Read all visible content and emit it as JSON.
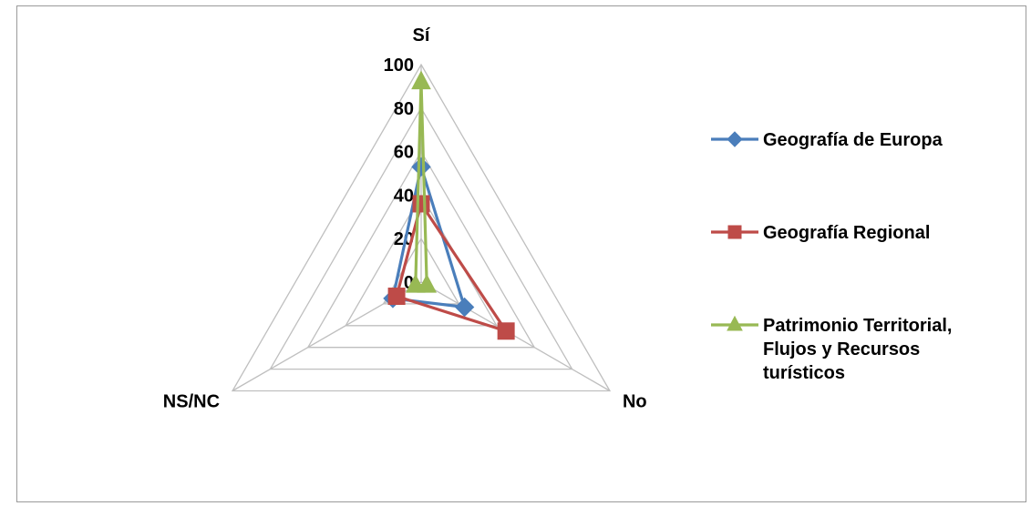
{
  "colors": {
    "background": "#ffffff",
    "grid": "#bfbfbf",
    "frame": "#9a9a9a"
  },
  "chart_data": {
    "type": "radar",
    "axes": [
      "Sí",
      "No",
      "NS/NC"
    ],
    "rlim": [
      0,
      100
    ],
    "ticks": [
      0,
      20,
      40,
      60,
      80,
      100
    ],
    "grid": true,
    "legend_position": "right",
    "series": [
      {
        "name": "Geografía de Europa",
        "legend_lines": [
          "Geografía de Europa"
        ],
        "values": [
          53,
          23,
          15
        ],
        "color": "#4a7ebb",
        "marker": "diamond"
      },
      {
        "name": "Geografía Regional",
        "legend_lines": [
          "Geografía Regional"
        ],
        "values": [
          36,
          45,
          13
        ],
        "color": "#be4b48",
        "marker": "square"
      },
      {
        "name": "Patrimonio Territorial, Flujos y Recursos turísticos",
        "legend_lines": [
          "Patrimonio Territorial,",
          "Flujos y Recursos",
          "turísticos"
        ],
        "values": [
          92,
          3,
          3
        ],
        "color": "#98b954",
        "marker": "triangle"
      }
    ]
  }
}
